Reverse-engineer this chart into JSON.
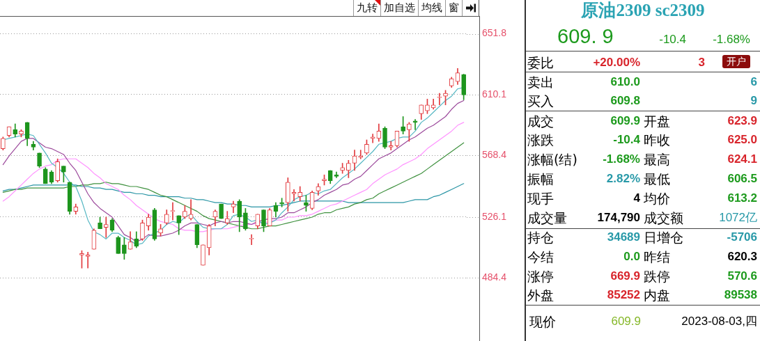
{
  "chart_data": [
    {
      "type": "candlestick",
      "annotations": [
        "九转",
        "加自选",
        "均线",
        "窗"
      ],
      "categories": [
        null,
        null,
        null,
        null,
        null,
        null,
        null,
        null,
        null,
        null,
        null,
        null,
        null,
        null,
        null,
        null,
        null,
        null,
        null,
        null,
        null,
        null,
        null,
        null,
        null,
        null,
        null,
        null,
        null,
        null,
        null,
        null,
        null,
        null,
        null,
        null,
        null,
        null,
        null,
        null,
        null,
        null,
        null,
        null,
        null,
        null,
        null,
        null,
        null,
        null,
        null,
        null,
        null,
        null,
        null,
        null,
        null,
        null,
        null,
        null,
        null,
        null,
        null,
        null,
        null,
        null,
        null,
        null,
        null,
        null,
        null,
        null,
        null,
        null,
        null,
        null,
        null
      ],
      "ohlc": [
        [
          573,
          581,
          572,
          580
        ],
        [
          582,
          588,
          581,
          588
        ],
        [
          586,
          590,
          581,
          583
        ],
        [
          583,
          586,
          581,
          585
        ],
        [
          591,
          591,
          575,
          580
        ],
        [
          576,
          578,
          572,
          574
        ],
        [
          570,
          570,
          560,
          561
        ],
        [
          559,
          560,
          549,
          549
        ],
        [
          557,
          558,
          549,
          550
        ],
        [
          551,
          566,
          550,
          564
        ],
        [
          561,
          561,
          550,
          557
        ],
        [
          550,
          550,
          528,
          530
        ],
        [
          530,
          535,
          528,
          533
        ],
        [
          500,
          503,
          491,
          501
        ],
        [
          499,
          502,
          491,
          500
        ],
        [
          504,
          518,
          504,
          517
        ],
        [
          522,
          526,
          518,
          518
        ],
        [
          519,
          526,
          512,
          521
        ],
        [
          524,
          525,
          516,
          517
        ],
        [
          512,
          513,
          501,
          501
        ],
        [
          507,
          512,
          497,
          501
        ],
        [
          504,
          516,
          504,
          509
        ],
        [
          511,
          516,
          505,
          506
        ],
        [
          511,
          524,
          510,
          522
        ],
        [
          520,
          528,
          517,
          526
        ],
        [
          531,
          532,
          510,
          511
        ],
        [
          515,
          521,
          513,
          518
        ],
        [
          522,
          531,
          521,
          528
        ],
        [
          530,
          536,
          524,
          530
        ],
        [
          527,
          527,
          514,
          522
        ],
        [
          526,
          534,
          525,
          530
        ],
        [
          525,
          538,
          524,
          528
        ],
        [
          521,
          521,
          505,
          507
        ],
        [
          493,
          507,
          493,
          507
        ],
        [
          505,
          521,
          500,
          520
        ],
        [
          526,
          531,
          520,
          530
        ],
        [
          535,
          535,
          525,
          525
        ],
        [
          522,
          530,
          521,
          525
        ],
        [
          533,
          537,
          529,
          535
        ],
        [
          537,
          538,
          516,
          526
        ],
        [
          529,
          532,
          517,
          518
        ],
        [
          511,
          514,
          507,
          511
        ],
        [
          520,
          528,
          518,
          528
        ],
        [
          531,
          531,
          516,
          520
        ],
        [
          520,
          532,
          520,
          531
        ],
        [
          534,
          536,
          526,
          530
        ],
        [
          536,
          539,
          533,
          535
        ],
        [
          536,
          553,
          530,
          550
        ],
        [
          542,
          545,
          537,
          543
        ],
        [
          540,
          547,
          537,
          543
        ],
        [
          536,
          541,
          530,
          534
        ],
        [
          532,
          544,
          531,
          543
        ],
        [
          544,
          549,
          541,
          547
        ],
        [
          551,
          555,
          548,
          552
        ],
        [
          558,
          558,
          549,
          551
        ],
        [
          555,
          557,
          553,
          554
        ],
        [
          558,
          563,
          556,
          560
        ],
        [
          558,
          565,
          553,
          563
        ],
        [
          563,
          572,
          558,
          568
        ],
        [
          567,
          572,
          566,
          568
        ],
        [
          570,
          579,
          569,
          576
        ],
        [
          580,
          583,
          577,
          581
        ],
        [
          580,
          590,
          578,
          585
        ],
        [
          587,
          588,
          573,
          574
        ],
        [
          574,
          578,
          572,
          575
        ],
        [
          575,
          585,
          574,
          585
        ],
        [
          588,
          595,
          583,
          585
        ],
        [
          586,
          591,
          578,
          590
        ],
        [
          592,
          593,
          586,
          591
        ],
        [
          597,
          603,
          593,
          603
        ],
        [
          599,
          607,
          597,
          603
        ],
        [
          601,
          607,
          600,
          603
        ],
        [
          608,
          611,
          603,
          608
        ],
        [
          609,
          613,
          603,
          611
        ],
        [
          616,
          622,
          615,
          621
        ],
        [
          619,
          628,
          617,
          625
        ],
        [
          623.9,
          624.1,
          606.5,
          609.9
        ]
      ],
      "colors": [
        "#e23b3f",
        "#e23b3f",
        "#1d951d",
        "#e23b3f",
        "#1d951d",
        "#1d951d",
        "#1d951d",
        "#1d951d",
        "#1d951d",
        "#e23b3f",
        "#1d951d",
        "#1d951d",
        "#e23b3f",
        "#e23b3f",
        "#e23b3f",
        "#e23b3f",
        "#1d951d",
        "#e23b3f",
        "#1d951d",
        "#1d951d",
        "#1d951d",
        "#e23b3f",
        "#1d951d",
        "#e23b3f",
        "#e23b3f",
        "#1d951d",
        "#e23b3f",
        "#e23b3f",
        "#e23b3f",
        "#1d951d",
        "#e23b3f",
        "#e23b3f",
        "#1d951d",
        "#e23b3f",
        "#e23b3f",
        "#e23b3f",
        "#1d951d",
        "#e23b3f",
        "#e23b3f",
        "#1d951d",
        "#1d951d",
        "#e23b3f",
        "#e23b3f",
        "#1d951d",
        "#e23b3f",
        "#1d951d",
        "#1d951d",
        "#e23b3f",
        "#e23b3f",
        "#e23b3f",
        "#1d951d",
        "#e23b3f",
        "#e23b3f",
        "#e23b3f",
        "#1d951d",
        "#1d951d",
        "#e23b3f",
        "#e23b3f",
        "#e23b3f",
        "#e23b3f",
        "#e23b3f",
        "#e23b3f",
        "#e23b3f",
        "#1d951d",
        "#e23b3f",
        "#e23b3f",
        "#1d951d",
        "#e23b3f",
        "#1d951d",
        "#e23b3f",
        "#e23b3f",
        "#e23b3f",
        "#e23b3f",
        "#e23b3f",
        "#e23b3f",
        "#e23b3f",
        "#1d951d"
      ],
      "series": [
        {
          "type": "line",
          "color": "#55b7c3",
          "values": [
            579,
            580,
            581,
            582,
            583,
            582,
            576,
            570,
            563,
            560,
            556,
            550,
            547,
            537,
            524,
            516,
            514,
            511,
            515,
            515,
            512,
            510,
            507,
            508,
            513,
            515,
            517,
            521,
            523,
            522,
            526,
            528,
            523,
            519,
            518,
            518,
            518,
            521,
            527,
            528,
            526,
            523,
            524,
            521,
            522,
            524,
            529,
            533,
            538,
            540,
            541,
            543,
            542,
            544,
            545,
            549,
            553,
            556,
            559,
            563,
            567,
            571,
            576,
            577,
            578,
            580,
            581,
            581,
            585,
            591,
            594,
            598,
            602,
            606,
            609,
            614,
            615
          ]
        },
        {
          "type": "line",
          "color": "#9c4a9c",
          "values": [
            562,
            568,
            573,
            578,
            580,
            580,
            577,
            574,
            573,
            571,
            569,
            563,
            558,
            550,
            542,
            536,
            532,
            529,
            526,
            520,
            514,
            512,
            509,
            511,
            514,
            513,
            513,
            514,
            515,
            517,
            520,
            522,
            522,
            521,
            520,
            522,
            523,
            522,
            523,
            523,
            522,
            521,
            523,
            524,
            525,
            525,
            526,
            529,
            529,
            531,
            533,
            536,
            538,
            541,
            543,
            545,
            548,
            549,
            552,
            554,
            558,
            562,
            566,
            568,
            570,
            573,
            576,
            579,
            581,
            584,
            587,
            589,
            592,
            595,
            600,
            604,
            606
          ]
        },
        {
          "type": "line",
          "color": "#ff92ff",
          "values": [
            537,
            540,
            544,
            548,
            552,
            556,
            559,
            561,
            562,
            565,
            566,
            566,
            566,
            563,
            560,
            556,
            553,
            549,
            547,
            545,
            541,
            538,
            534,
            531,
            528,
            525,
            523,
            522,
            521,
            518,
            517,
            517,
            516,
            516,
            517,
            518,
            518,
            518,
            519,
            520,
            521,
            521,
            522,
            522,
            523,
            524,
            524,
            526,
            526,
            527,
            527,
            528,
            530,
            532,
            534,
            535,
            537,
            539,
            541,
            543,
            545,
            549,
            552,
            555,
            557,
            559,
            562,
            564,
            566,
            569,
            573,
            576,
            579,
            582,
            585,
            589,
            591
          ]
        },
        {
          "type": "line",
          "color": "#3f913f",
          "values": [
            543,
            544,
            545,
            545,
            546,
            546,
            546,
            546,
            546,
            546,
            546,
            547,
            547,
            548,
            548,
            549,
            549,
            550,
            549,
            549,
            548,
            547,
            547,
            546,
            545,
            543,
            541,
            540,
            538,
            536,
            534,
            532,
            530,
            527,
            525,
            524,
            523,
            522,
            521,
            520,
            519,
            518,
            518,
            519,
            520,
            520,
            521,
            522,
            523,
            524,
            525,
            526,
            528,
            529,
            529,
            531,
            532,
            533,
            535,
            536,
            538,
            539,
            542,
            544,
            546,
            548,
            550,
            552,
            554,
            556,
            559,
            562,
            565,
            568,
            571,
            574,
            577
          ]
        },
        {
          "type": "line",
          "color": "#2a95a5",
          "values": [
            544,
            545,
            545,
            546,
            547,
            548,
            548,
            548,
            548,
            548,
            548,
            548,
            548,
            547,
            547,
            546,
            546,
            545,
            545,
            544,
            543,
            543,
            542,
            542,
            541,
            541,
            540,
            540,
            540,
            540,
            539,
            539,
            538,
            538,
            537,
            536,
            536,
            535,
            535,
            534,
            534,
            533,
            533,
            533,
            533,
            534,
            534,
            535,
            536,
            537,
            537,
            537,
            537,
            537,
            537,
            537,
            537,
            536,
            536,
            536,
            536,
            536,
            536,
            536,
            536,
            536,
            536,
            537,
            538,
            538,
            538,
            540,
            541,
            543,
            545,
            547,
            549
          ]
        }
      ],
      "ylim": [
        441,
        664
      ],
      "yticks": [
        484.4,
        526.1,
        568.4,
        610.1,
        651.8
      ],
      "grid": "y",
      "tick_labels": "y"
    },
    {
      "type": "other",
      "title": "原油2309 sc2309",
      "annotations": [
        "609. 9",
        "-10.4",
        "-1.68%",
        "委比",
        "+20.00%",
        "3",
        "开户",
        "卖出",
        "610.0",
        "6",
        "买入",
        "609.8",
        "9",
        "成交",
        "609.9",
        "开盘",
        "623.9",
        "涨跌",
        "-10.4",
        "昨收",
        "625.0",
        "涨幅(结)",
        "-1.68%",
        "最高",
        "624.1",
        "振幅",
        "2.82%",
        "最低",
        "606.5",
        "现手",
        "4",
        "均价",
        "613.2",
        "成交量",
        "174,790",
        "成交额",
        "1072亿",
        "持仓",
        "34689",
        "日增仓",
        "-5706",
        "今结",
        "0.0",
        "昨结",
        "620.3",
        "涨停",
        "669.9",
        "跌停",
        "570.6",
        "外盘",
        "85252",
        "内盘",
        "89538",
        "现价",
        "609.9",
        "2023-08-03,四"
      ]
    }
  ]
}
